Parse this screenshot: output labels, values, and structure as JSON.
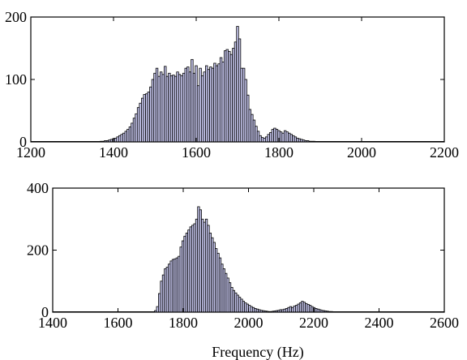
{
  "chart_data": [
    {
      "type": "bar",
      "title": "",
      "xlabel": "",
      "ylabel": "",
      "xlim": [
        1200,
        2200
      ],
      "ylim": [
        0,
        200
      ],
      "xticks": [
        1200,
        1400,
        1600,
        1800,
        2000,
        2200
      ],
      "yticks": [
        0,
        100,
        200
      ],
      "xtick_labels": [
        "1200",
        "1400",
        "1600",
        "1800",
        "2000",
        "2200"
      ],
      "ytick_labels": [
        "0",
        "100",
        "200"
      ],
      "bar_width": 5,
      "grid": false,
      "bar_color": "#c8c8f0",
      "edge_color": "#000000",
      "points": [
        [
          1370,
          1
        ],
        [
          1375,
          1
        ],
        [
          1380,
          2
        ],
        [
          1385,
          2
        ],
        [
          1390,
          3
        ],
        [
          1395,
          4
        ],
        [
          1400,
          5
        ],
        [
          1405,
          6
        ],
        [
          1410,
          8
        ],
        [
          1415,
          10
        ],
        [
          1420,
          12
        ],
        [
          1425,
          14
        ],
        [
          1430,
          17
        ],
        [
          1435,
          20
        ],
        [
          1440,
          24
        ],
        [
          1445,
          30
        ],
        [
          1450,
          38
        ],
        [
          1455,
          45
        ],
        [
          1460,
          55
        ],
        [
          1465,
          62
        ],
        [
          1470,
          70
        ],
        [
          1475,
          76
        ],
        [
          1480,
          77
        ],
        [
          1485,
          80
        ],
        [
          1490,
          88
        ],
        [
          1495,
          100
        ],
        [
          1500,
          110
        ],
        [
          1505,
          118
        ],
        [
          1510,
          105
        ],
        [
          1515,
          112
        ],
        [
          1520,
          108
        ],
        [
          1525,
          121
        ],
        [
          1530,
          105
        ],
        [
          1535,
          110
        ],
        [
          1540,
          106
        ],
        [
          1545,
          107
        ],
        [
          1550,
          105
        ],
        [
          1555,
          112
        ],
        [
          1560,
          108
        ],
        [
          1565,
          106
        ],
        [
          1570,
          110
        ],
        [
          1575,
          118
        ],
        [
          1580,
          120
        ],
        [
          1585,
          112
        ],
        [
          1590,
          132
        ],
        [
          1595,
          110
        ],
        [
          1600,
          122
        ],
        [
          1605,
          90
        ],
        [
          1610,
          118
        ],
        [
          1615,
          106
        ],
        [
          1620,
          112
        ],
        [
          1625,
          122
        ],
        [
          1630,
          116
        ],
        [
          1635,
          120
        ],
        [
          1640,
          118
        ],
        [
          1645,
          126
        ],
        [
          1650,
          122
        ],
        [
          1655,
          125
        ],
        [
          1660,
          135
        ],
        [
          1665,
          128
        ],
        [
          1670,
          146
        ],
        [
          1675,
          148
        ],
        [
          1680,
          145
        ],
        [
          1685,
          140
        ],
        [
          1690,
          150
        ],
        [
          1695,
          160
        ],
        [
          1700,
          185
        ],
        [
          1705,
          165
        ],
        [
          1710,
          118
        ],
        [
          1715,
          118
        ],
        [
          1720,
          100
        ],
        [
          1725,
          75
        ],
        [
          1730,
          52
        ],
        [
          1735,
          44
        ],
        [
          1740,
          35
        ],
        [
          1745,
          25
        ],
        [
          1750,
          17
        ],
        [
          1755,
          10
        ],
        [
          1760,
          7
        ],
        [
          1765,
          6
        ],
        [
          1770,
          8
        ],
        [
          1775,
          12
        ],
        [
          1780,
          15
        ],
        [
          1785,
          20
        ],
        [
          1790,
          22
        ],
        [
          1795,
          20
        ],
        [
          1800,
          18
        ],
        [
          1805,
          16
        ],
        [
          1810,
          14
        ],
        [
          1815,
          18
        ],
        [
          1820,
          16
        ],
        [
          1825,
          14
        ],
        [
          1830,
          12
        ],
        [
          1835,
          10
        ],
        [
          1840,
          8
        ],
        [
          1845,
          6
        ],
        [
          1850,
          5
        ],
        [
          1855,
          4
        ],
        [
          1860,
          3
        ],
        [
          1865,
          2
        ],
        [
          1870,
          2
        ],
        [
          1875,
          1
        ],
        [
          1880,
          1
        ],
        [
          1885,
          1
        ]
      ]
    },
    {
      "type": "bar",
      "title": "",
      "xlabel": "Frequency (Hz)",
      "ylabel": "",
      "xlim": [
        1400,
        2600
      ],
      "ylim": [
        0,
        400
      ],
      "xticks": [
        1400,
        1600,
        1800,
        2000,
        2200,
        2400,
        2600
      ],
      "yticks": [
        0,
        200,
        400
      ],
      "xtick_labels": [
        "1400",
        "1600",
        "1800",
        "2000",
        "2200",
        "2400",
        "2600"
      ],
      "ytick_labels": [
        "0",
        "200",
        "400"
      ],
      "bar_width": 6,
      "grid": false,
      "bar_color": "#c8c8f0",
      "edge_color": "#000000",
      "points": [
        [
          1715,
          5
        ],
        [
          1721,
          18
        ],
        [
          1727,
          60
        ],
        [
          1733,
          100
        ],
        [
          1739,
          120
        ],
        [
          1745,
          140
        ],
        [
          1751,
          145
        ],
        [
          1757,
          155
        ],
        [
          1763,
          165
        ],
        [
          1769,
          170
        ],
        [
          1775,
          172
        ],
        [
          1781,
          175
        ],
        [
          1787,
          180
        ],
        [
          1793,
          210
        ],
        [
          1799,
          230
        ],
        [
          1805,
          245
        ],
        [
          1811,
          255
        ],
        [
          1817,
          265
        ],
        [
          1823,
          275
        ],
        [
          1829,
          280
        ],
        [
          1835,
          285
        ],
        [
          1841,
          300
        ],
        [
          1847,
          340
        ],
        [
          1853,
          330
        ],
        [
          1859,
          300
        ],
        [
          1865,
          290
        ],
        [
          1871,
          300
        ],
        [
          1877,
          280
        ],
        [
          1883,
          255
        ],
        [
          1889,
          240
        ],
        [
          1895,
          225
        ],
        [
          1901,
          205
        ],
        [
          1907,
          190
        ],
        [
          1913,
          175
        ],
        [
          1919,
          155
        ],
        [
          1925,
          140
        ],
        [
          1931,
          125
        ],
        [
          1937,
          110
        ],
        [
          1943,
          95
        ],
        [
          1949,
          80
        ],
        [
          1955,
          70
        ],
        [
          1961,
          62
        ],
        [
          1967,
          55
        ],
        [
          1973,
          48
        ],
        [
          1979,
          42
        ],
        [
          1985,
          35
        ],
        [
          1991,
          30
        ],
        [
          1997,
          26
        ],
        [
          2003,
          22
        ],
        [
          2009,
          18
        ],
        [
          2015,
          15
        ],
        [
          2021,
          12
        ],
        [
          2027,
          10
        ],
        [
          2033,
          8
        ],
        [
          2039,
          6
        ],
        [
          2045,
          5
        ],
        [
          2051,
          4
        ],
        [
          2057,
          3
        ],
        [
          2063,
          2
        ],
        [
          2069,
          2
        ],
        [
          2075,
          3
        ],
        [
          2081,
          4
        ],
        [
          2087,
          5
        ],
        [
          2093,
          6
        ],
        [
          2099,
          8
        ],
        [
          2105,
          8
        ],
        [
          2111,
          10
        ],
        [
          2117,
          12
        ],
        [
          2123,
          15
        ],
        [
          2129,
          18
        ],
        [
          2135,
          15
        ],
        [
          2141,
          20
        ],
        [
          2147,
          22
        ],
        [
          2153,
          26
        ],
        [
          2159,
          30
        ],
        [
          2165,
          35
        ],
        [
          2171,
          32
        ],
        [
          2177,
          28
        ],
        [
          2183,
          25
        ],
        [
          2189,
          22
        ],
        [
          2195,
          18
        ],
        [
          2201,
          15
        ],
        [
          2207,
          12
        ],
        [
          2213,
          10
        ],
        [
          2219,
          8
        ],
        [
          2225,
          6
        ],
        [
          2231,
          5
        ],
        [
          2237,
          4
        ],
        [
          2243,
          3
        ],
        [
          2249,
          2
        ],
        [
          2255,
          2
        ],
        [
          2261,
          1
        ]
      ]
    }
  ]
}
